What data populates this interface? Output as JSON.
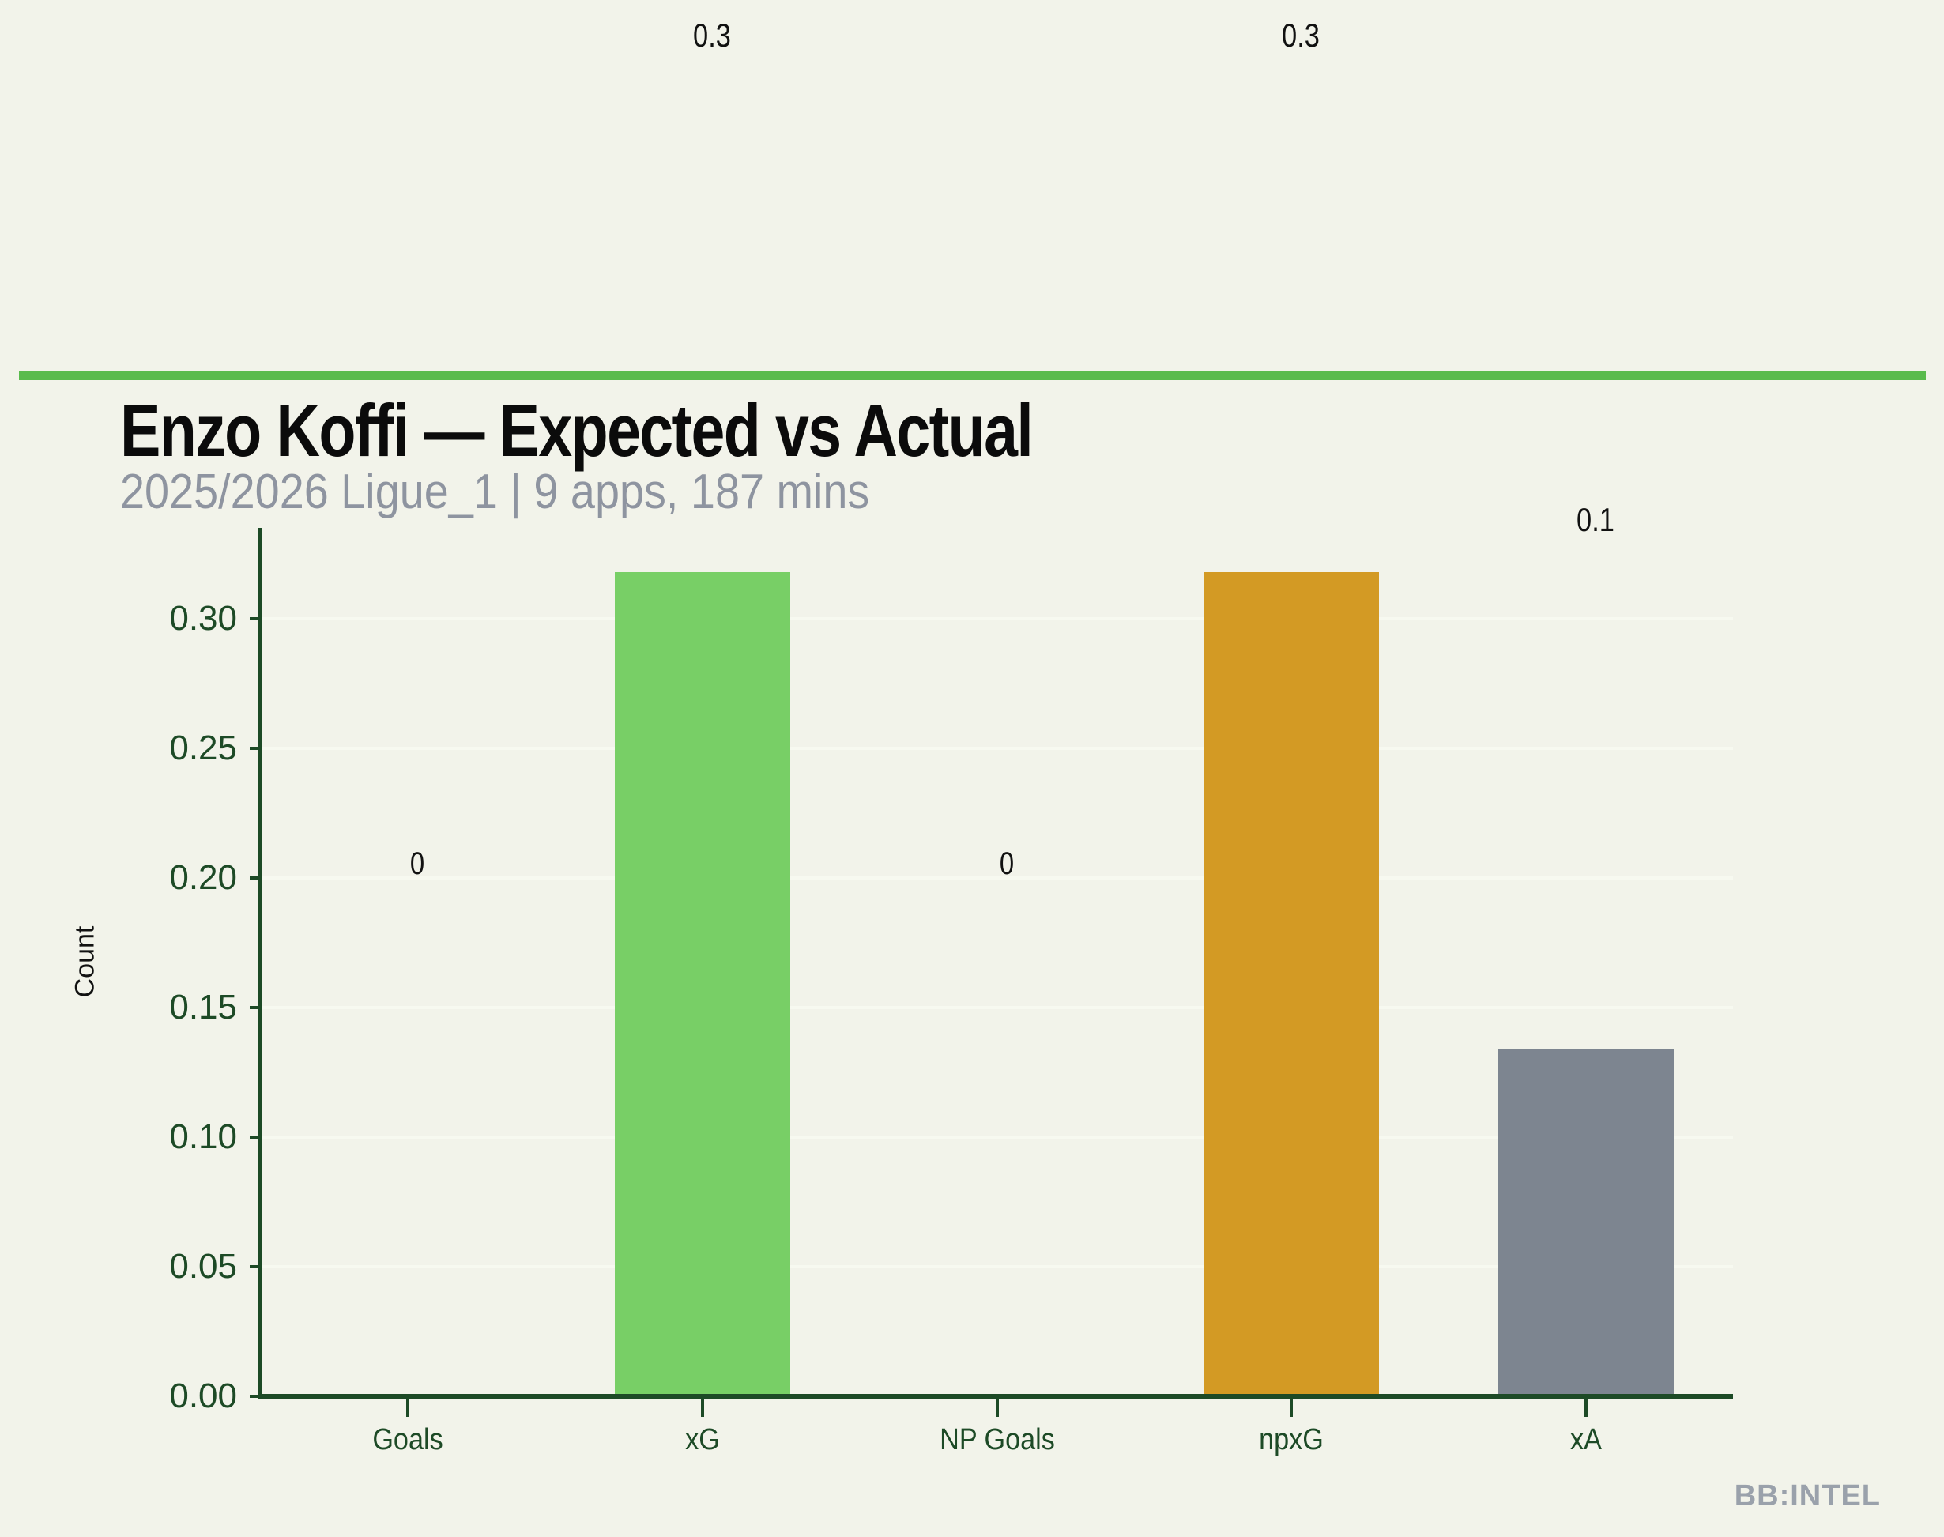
{
  "page": {
    "background": "#f2f3ea",
    "divider_color": "#5abb4d"
  },
  "header": {
    "title": "Enzo Koffi — Expected vs Actual",
    "subtitle": "2025/2026 Ligue_1 | 9 apps, 187 mins",
    "title_color": "#0b0b0b",
    "subtitle_color": "#8e94a0"
  },
  "watermark": {
    "text": "BB:INTEL",
    "color": "#9aa1ab"
  },
  "chart_data": {
    "type": "bar",
    "title": "Enzo Koffi — Expected vs Actual",
    "subtitle": "2025/2026 Ligue_1 | 9 apps, 187 mins",
    "categories": [
      "Goals",
      "xG",
      "NP Goals",
      "npxG",
      "xA"
    ],
    "values": [
      0,
      0.318,
      0,
      0.318,
      0.134
    ],
    "data_labels": [
      "0",
      "0.3",
      "0",
      "0.3",
      "0.1"
    ],
    "bar_colors": [
      "#78cf66",
      "#78cf66",
      "#d39a24",
      "#d39a24",
      "#7d8590"
    ],
    "ylabel": "Count",
    "xlabel": "",
    "ytick_labels": [
      "0.00",
      "0.05",
      "0.10",
      "0.15",
      "0.20",
      "0.25",
      "0.30"
    ],
    "ylim": [
      0,
      0.335
    ],
    "grid": true,
    "legend": false,
    "axis_color": "#1d4a26",
    "grid_color": "#f7f9f0",
    "label_color": "#111111"
  }
}
